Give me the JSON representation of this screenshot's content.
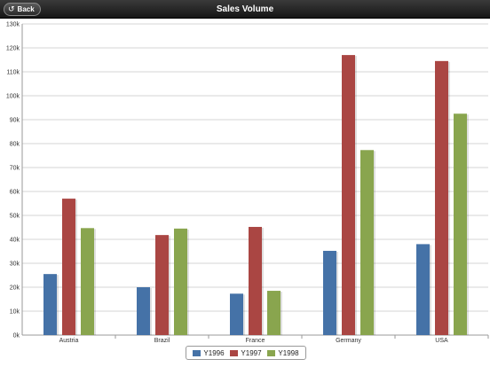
{
  "header": {
    "back_label": "Back",
    "title": "Sales Volume"
  },
  "colors": {
    "Y1996": "#4572a7",
    "Y1997": "#aa4643",
    "Y1998": "#89a54e"
  },
  "chart_data": {
    "type": "bar",
    "title": "Sales Volume",
    "xlabel": "",
    "ylabel": "",
    "categories": [
      "Austria",
      "Brazil",
      "France",
      "Germany",
      "USA"
    ],
    "series": [
      {
        "name": "Y1996",
        "values": [
          25500,
          20000,
          17300,
          35200,
          38000
        ]
      },
      {
        "name": "Y1997",
        "values": [
          57000,
          41800,
          45200,
          117000,
          114500
        ]
      },
      {
        "name": "Y1998",
        "values": [
          44700,
          44500,
          18500,
          77300,
          92500
        ]
      }
    ],
    "ylim": [
      0,
      130000
    ],
    "yticks": [
      "0k",
      "10k",
      "20k",
      "30k",
      "40k",
      "50k",
      "60k",
      "70k",
      "80k",
      "90k",
      "100k",
      "110k",
      "120k",
      "130k"
    ],
    "grid": true,
    "legend_position": "bottom-center"
  }
}
